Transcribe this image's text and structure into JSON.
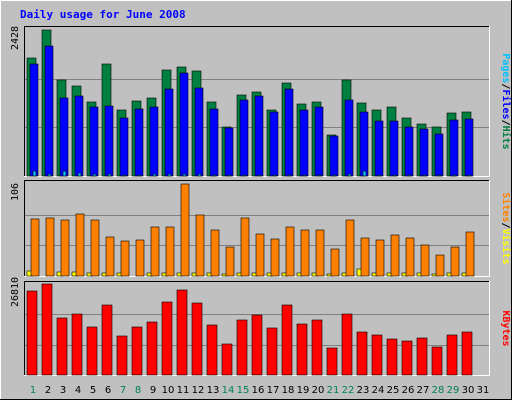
{
  "chart_data": {
    "type": "bar",
    "title": "Daily usage for June 2008",
    "categories": [
      "1",
      "2",
      "3",
      "4",
      "5",
      "6",
      "7",
      "8",
      "9",
      "10",
      "11",
      "12",
      "13",
      "14",
      "15",
      "16",
      "17",
      "18",
      "19",
      "20",
      "21",
      "22",
      "23",
      "24",
      "25",
      "26",
      "27",
      "28",
      "29",
      "30",
      "31"
    ],
    "weekend_days": [
      "1",
      "7",
      "8",
      "14",
      "15",
      "21",
      "22",
      "28",
      "29"
    ],
    "panels": [
      {
        "name": "hits-files-pages",
        "ymax_label": "2428",
        "ymax": 2428,
        "grid": true,
        "side_labels": [
          "Pages",
          "/",
          "Files",
          "/",
          "Hits"
        ],
        "series": [
          {
            "name": "Hits",
            "color": "#008040",
            "values": [
              1970,
              2428,
              1600,
              1500,
              1230,
              1860,
              1100,
              1250,
              1290,
              1760,
              1810,
              1750,
              1230,
              820,
              1350,
              1400,
              1100,
              1550,
              1190,
              1230,
              690,
              1590,
              1210,
              1090,
              1140,
              970,
              860,
              810,
              1040,
              1070,
              0
            ]
          },
          {
            "name": "Files",
            "color": "#0000ff",
            "values": [
              1860,
              2170,
              1290,
              1330,
              1150,
              1170,
              960,
              1110,
              1140,
              1440,
              1720,
              1470,
              1110,
              800,
              1270,
              1330,
              1070,
              1450,
              1100,
              1140,
              670,
              1270,
              1070,
              910,
              920,
              810,
              780,
              700,
              930,
              950,
              0
            ]
          },
          {
            "name": "Pages",
            "color": "#00c0ff",
            "values": [
              90,
              30,
              90,
              45,
              35,
              30,
              20,
              15,
              30,
              25,
              25,
              25,
              10,
              10,
              20,
              20,
              10,
              20,
              15,
              15,
              5,
              25,
              80,
              10,
              15,
              8,
              5,
              5,
              8,
              8,
              0
            ]
          }
        ]
      },
      {
        "name": "visits-sites",
        "ymax_label": "106",
        "ymax": 106,
        "grid": true,
        "side_labels": [
          "Sites",
          "/",
          "Visits"
        ],
        "series": [
          {
            "name": "Visits",
            "color": "#ffff00",
            "values": [
              6,
              0,
              5,
              5,
              4,
              4,
              3,
              0,
              3,
              3,
              3,
              3,
              3,
              2,
              3,
              3,
              3,
              3,
              3,
              3,
              2,
              3,
              8,
              3,
              3,
              3,
              3,
              2,
              3,
              3,
              0
            ]
          },
          {
            "name": "Sites",
            "color": "#ff8000",
            "values": [
              66,
              67,
              64,
              72,
              64,
              45,
              40,
              42,
              57,
              57,
              106,
              70,
              53,
              33,
              67,
              48,
              43,
              57,
              53,
              53,
              31,
              64,
              44,
              42,
              47,
              44,
              36,
              24,
              33,
              51,
              0
            ]
          }
        ]
      },
      {
        "name": "kbytes",
        "ymax_label": "26810",
        "ymax": 26810,
        "grid": true,
        "side_labels": [
          "KBytes"
        ],
        "series": [
          {
            "name": "KBytes",
            "color": "#ff0000",
            "values": [
              24650,
              26810,
              16680,
              17850,
              14070,
              20600,
              11350,
              14200,
              15520,
              21500,
              25040,
              21240,
              14640,
              9250,
              16060,
              17580,
              13850,
              20600,
              15000,
              16060,
              7900,
              18000,
              12650,
              11690,
              10710,
              9980,
              10930,
              8240,
              11700,
              12650,
              0
            ]
          }
        ]
      }
    ]
  },
  "colors": {
    "background": "#c0c0c0",
    "title": "#0000ff",
    "grid": "#808080",
    "weekday_label": "#000000",
    "weekend_label": "#00805c"
  }
}
